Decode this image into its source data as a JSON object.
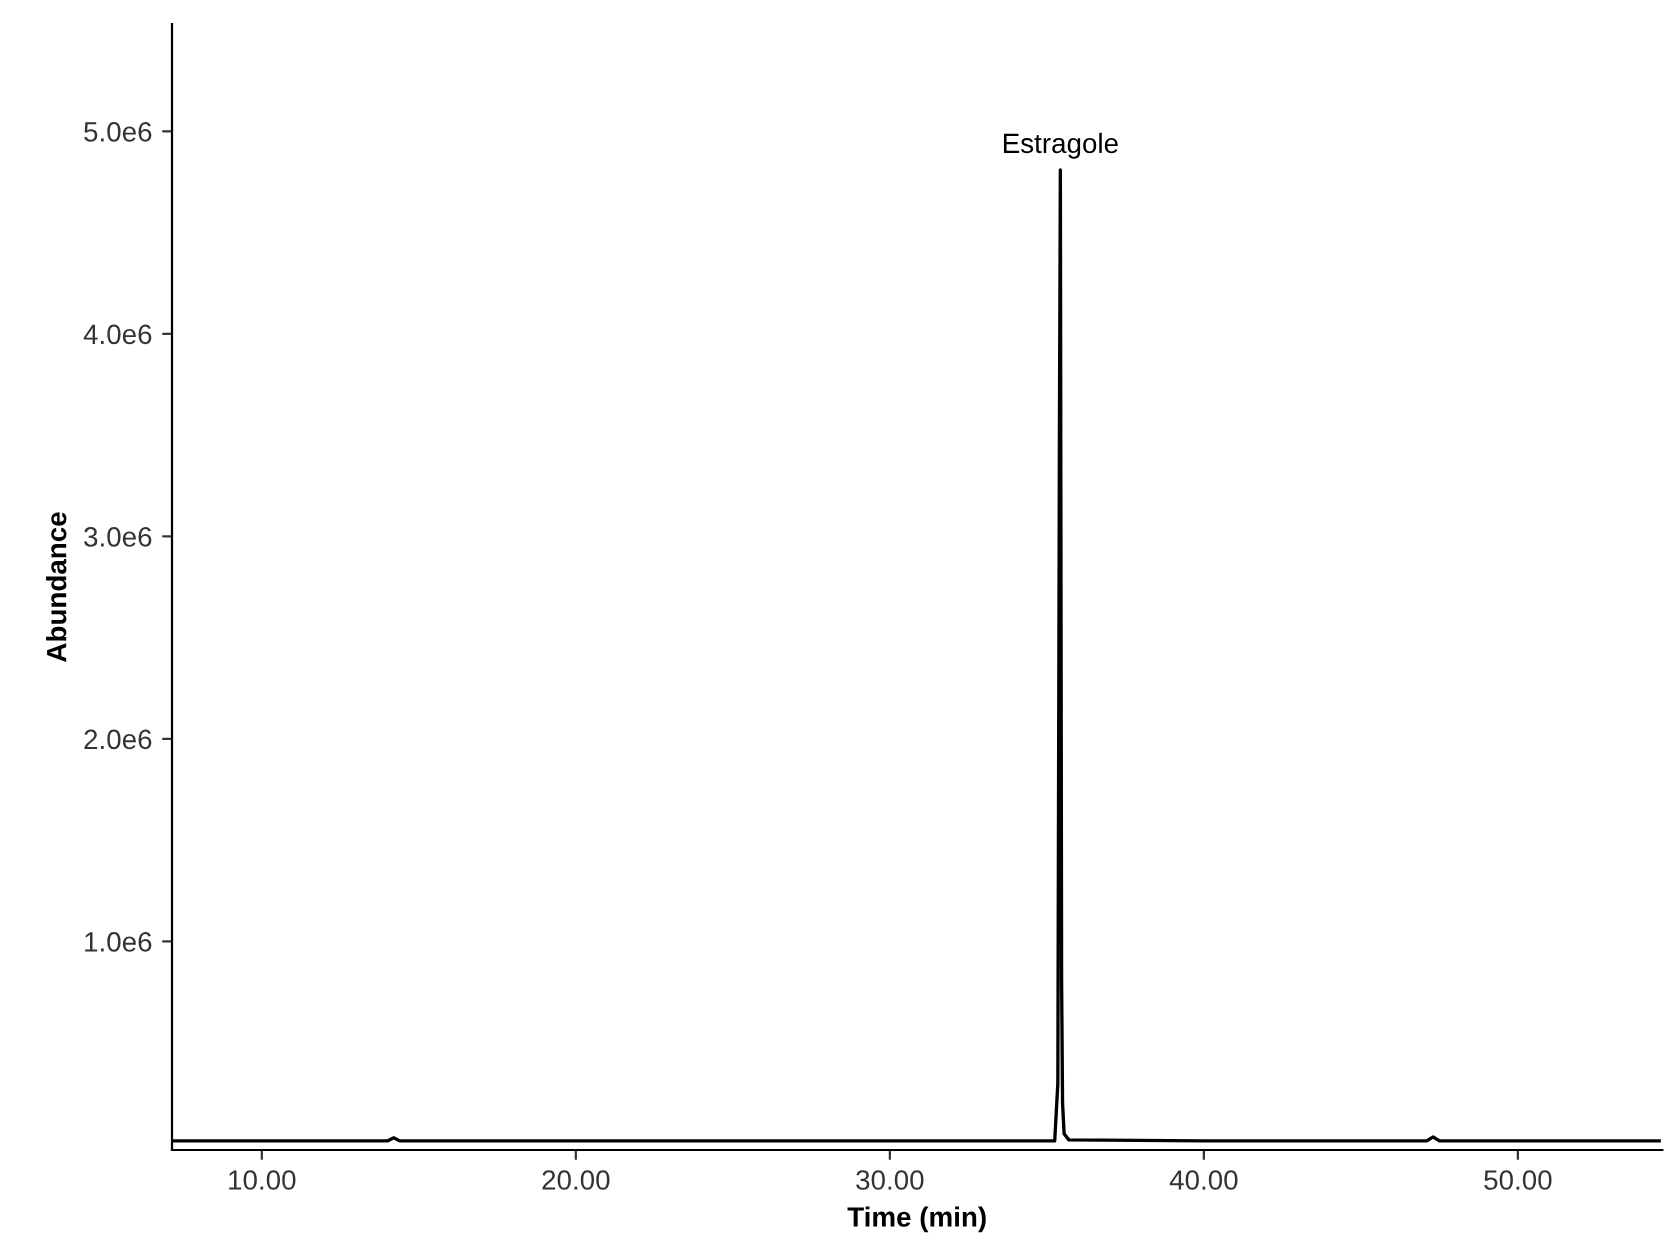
{
  "chart_data": {
    "type": "line",
    "xlabel": "Time (min)",
    "ylabel": "Abundance",
    "series": [
      {
        "color": "#000000",
        "x": [
          7.2,
          10.0,
          14.0,
          14.2,
          14.4,
          20.0,
          30.0,
          35.25,
          35.35,
          35.4,
          35.43,
          35.47,
          35.5,
          35.55,
          35.7,
          40.0,
          44.7,
          47.1,
          47.3,
          47.5,
          54.5
        ],
        "values": [
          15000,
          15000,
          15000,
          30000,
          15000,
          15000,
          15000,
          15000,
          300000,
          3500000,
          4810000,
          800000,
          200000,
          50000,
          20000,
          15000,
          15000,
          15000,
          35000,
          15000,
          15000
        ]
      }
    ],
    "annotations": [
      {
        "text": "Estragole",
        "x": 35.43,
        "y": 4810000
      }
    ],
    "xlim": [
      7.14,
      54.6
    ],
    "ylim": [
      -30000,
      5530000
    ],
    "xticks": [
      {
        "value": 10,
        "label": "10.00"
      },
      {
        "value": 20,
        "label": "20.00"
      },
      {
        "value": 30,
        "label": "30.00"
      },
      {
        "value": 40,
        "label": "40.00"
      },
      {
        "value": 50,
        "label": "50.00"
      }
    ],
    "yticks": [
      {
        "value": 1000000,
        "label": "1.0e6"
      },
      {
        "value": 2000000,
        "label": "2.0e6"
      },
      {
        "value": 3000000,
        "label": "3.0e6"
      },
      {
        "value": 4000000,
        "label": "4.0e6"
      },
      {
        "value": 5000000,
        "label": "5.0e6"
      }
    ],
    "grid": false,
    "legend": false,
    "marker": "none",
    "line_style": "solid"
  }
}
